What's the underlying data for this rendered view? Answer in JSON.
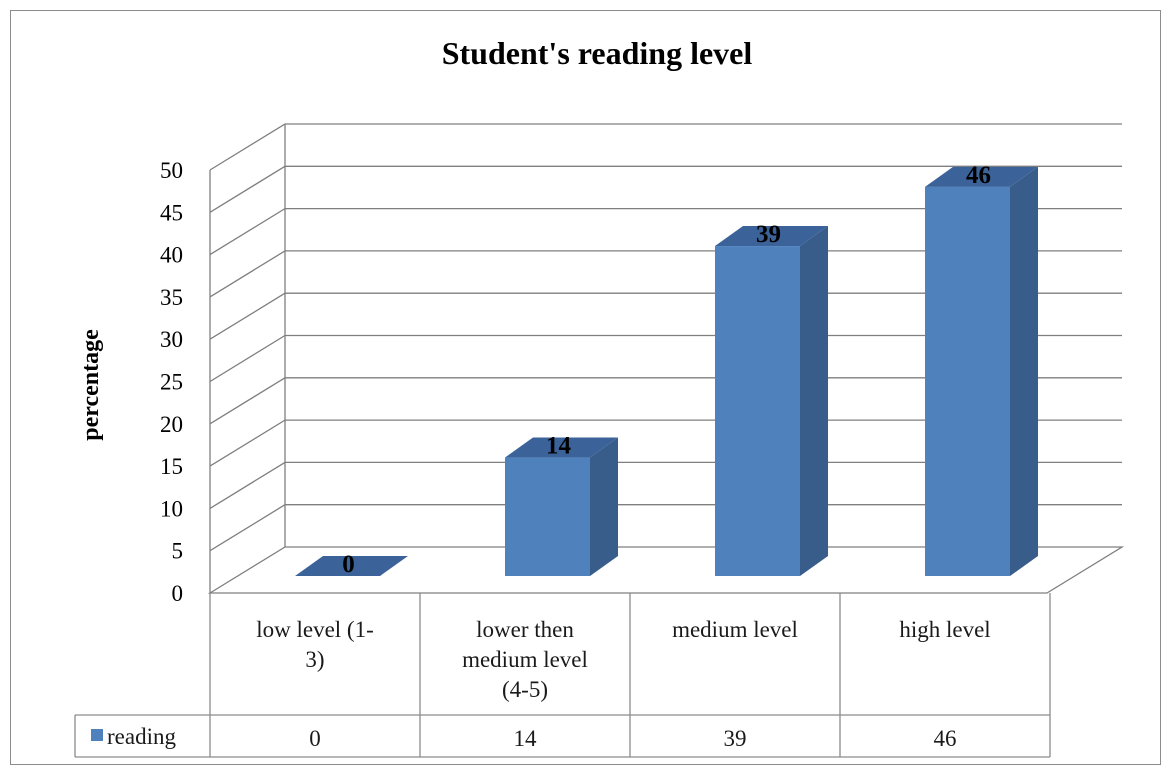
{
  "chart_data": {
    "type": "bar",
    "title": "Student's reading level",
    "ylabel": "percentage",
    "xlabel": "",
    "ylim": [
      0,
      50
    ],
    "y_ticks": [
      0,
      5,
      10,
      15,
      20,
      25,
      30,
      35,
      40,
      45,
      50
    ],
    "categories": [
      [
        "low level (1-",
        "3)"
      ],
      [
        "lower then",
        "medium level",
        "(4-5)"
      ],
      [
        "medium level"
      ],
      [
        "high level"
      ]
    ],
    "series": [
      {
        "name": "reading",
        "values": [
          0,
          14,
          39,
          46
        ],
        "color": "#4f81bd"
      }
    ],
    "data_labels": true,
    "data_table": true,
    "style": "3d-column",
    "grid": true,
    "colors": {
      "bar_front": "#4f81bd",
      "bar_side": "#385d8a",
      "bar_top": "#3b639a",
      "grid": "#7f7f7f"
    }
  }
}
